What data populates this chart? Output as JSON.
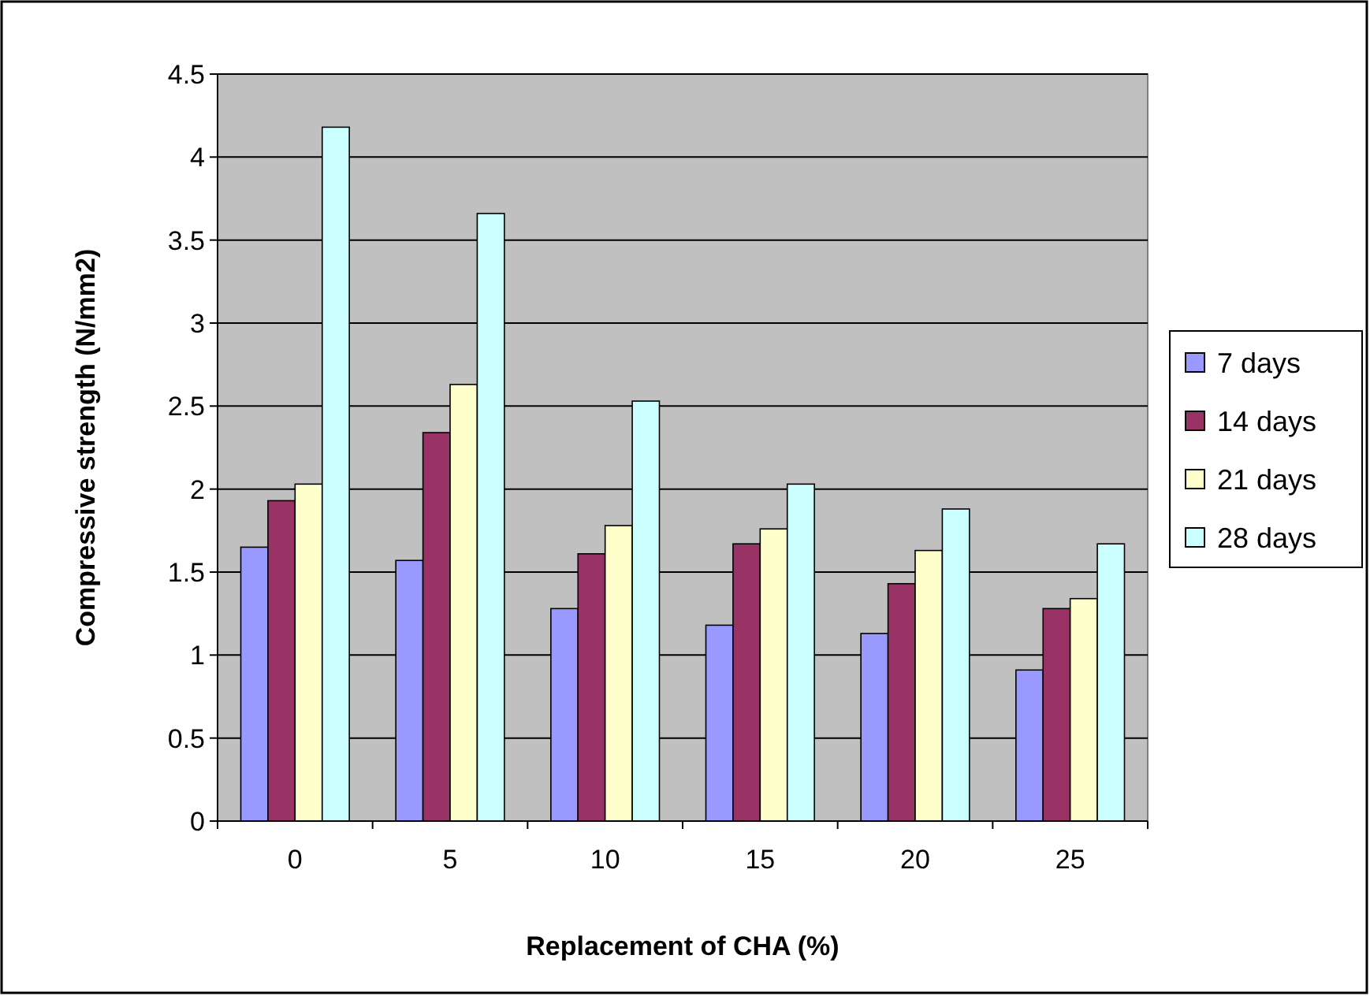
{
  "chart_data": {
    "type": "bar",
    "xlabel": "Replacement of CHA (%)",
    "ylabel": "Compressive strength (N/mm2)",
    "categories": [
      "0",
      "5",
      "10",
      "15",
      "20",
      "25"
    ],
    "series": [
      {
        "name": "7 days",
        "color": "#9999ff",
        "values": [
          1.65,
          1.57,
          1.28,
          1.18,
          1.13,
          0.91
        ]
      },
      {
        "name": "14 days",
        "color": "#993366",
        "values": [
          1.93,
          2.34,
          1.61,
          1.67,
          1.43,
          1.28
        ]
      },
      {
        "name": "21 days",
        "color": "#ffffcc",
        "values": [
          2.03,
          2.63,
          1.78,
          1.76,
          1.63,
          1.34
        ]
      },
      {
        "name": "28 days",
        "color": "#ccffff",
        "values": [
          4.18,
          3.66,
          2.53,
          2.03,
          1.88,
          1.67
        ]
      }
    ],
    "ylim": [
      0,
      4.5
    ],
    "yticks": [
      0,
      0.5,
      1,
      1.5,
      2,
      2.5,
      3,
      3.5,
      4,
      4.5
    ],
    "grid": "y",
    "legend": "right"
  }
}
